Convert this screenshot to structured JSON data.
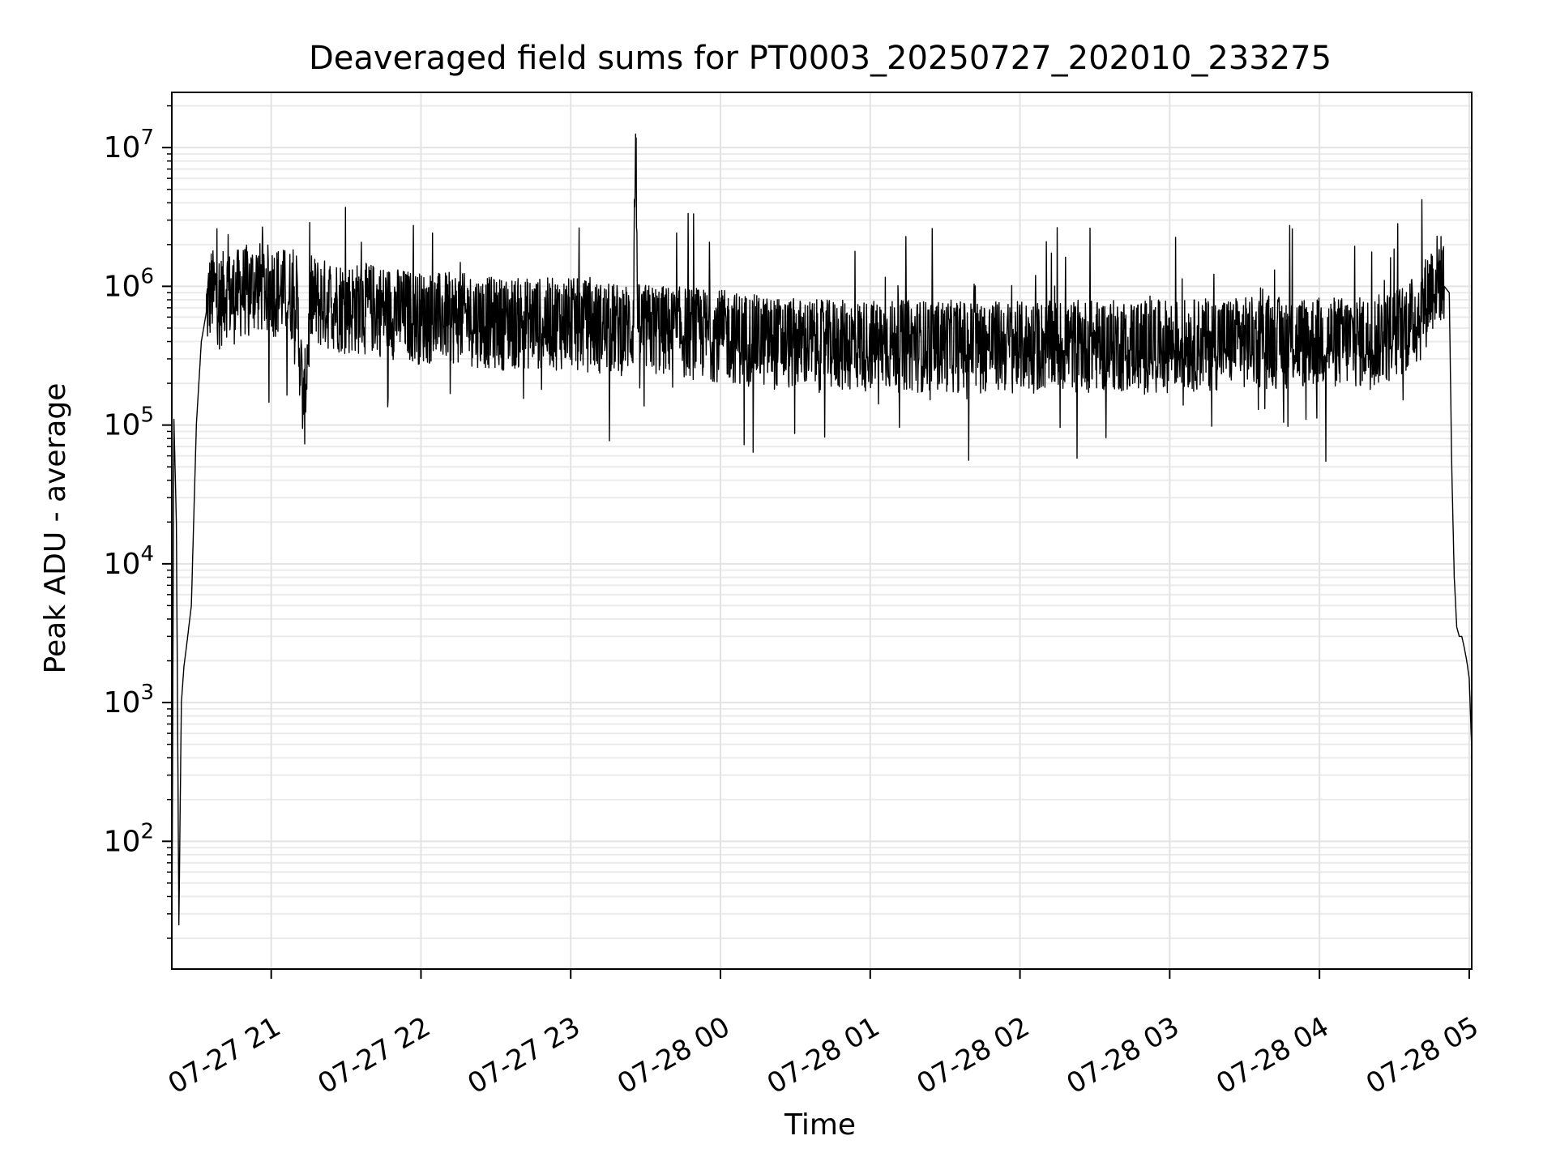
{
  "chart_data": {
    "type": "line",
    "title": "Deaveraged field sums for PT0003_20250727_202010_233275",
    "xlabel": "Time",
    "ylabel": "Peak ADU - average",
    "x_axis": {
      "kind": "time",
      "range": [
        "2025-07-27 20:20:10",
        "2025-07-28 05:01:00"
      ],
      "ticks": [
        "2025-07-27 21:00",
        "2025-07-27 22:00",
        "2025-07-27 23:00",
        "2025-07-28 00:00",
        "2025-07-28 01:00",
        "2025-07-28 02:00",
        "2025-07-28 03:00",
        "2025-07-28 04:00",
        "2025-07-28 05:00"
      ],
      "tick_labels": [
        "07-27 21",
        "07-27 22",
        "07-27 23",
        "07-28 00",
        "07-28 01",
        "07-28 02",
        "07-28 03",
        "07-28 04",
        "07-28 05"
      ],
      "tick_label_rotation_deg": 30
    },
    "y_axis": {
      "scale": "log",
      "range": [
        12,
        25000000
      ],
      "ticks": [
        100,
        1000,
        10000,
        100000,
        1000000,
        10000000
      ],
      "tick_labels": [
        {
          "base": "10",
          "exp": "2"
        },
        {
          "base": "10",
          "exp": "3"
        },
        {
          "base": "10",
          "exp": "4"
        },
        {
          "base": "10",
          "exp": "5"
        },
        {
          "base": "10",
          "exp": "6"
        },
        {
          "base": "10",
          "exp": "7"
        }
      ]
    },
    "grid": true,
    "grid_minor": true,
    "series": [
      {
        "color": "#000000",
        "x": [
          "2025-07-27 20:20:10",
          "2025-07-27 20:21:00",
          "2025-07-27 20:22:00",
          "2025-07-27 20:23:00",
          "2025-07-27 20:24:00",
          "2025-07-27 20:25:00",
          "2025-07-27 20:26:00",
          "2025-07-27 20:28:00",
          "2025-07-27 20:30:00",
          "2025-07-27 20:32:00",
          "2025-07-27 20:34:00",
          "2025-07-27 20:36:00",
          "2025-07-27 20:38:00",
          "2025-07-27 20:40:00",
          "2025-07-27 20:42:00",
          "2025-07-27 20:44:00",
          "2025-07-27 20:47:00",
          "2025-07-27 20:50:00",
          "2025-07-27 20:55:00",
          "2025-07-27 21:00:00",
          "2025-07-27 21:05:00",
          "2025-07-27 21:10:00",
          "2025-07-27 21:13:00",
          "2025-07-27 21:16:00",
          "2025-07-27 21:20:00",
          "2025-07-27 21:25:00",
          "2025-07-27 21:30:00",
          "2025-07-27 21:40:00",
          "2025-07-27 21:50:00",
          "2025-07-27 22:00:00",
          "2025-07-27 22:15:00",
          "2025-07-27 22:30:00",
          "2025-07-27 22:45:00",
          "2025-07-27 23:00:00",
          "2025-07-27 23:15:00",
          "2025-07-27 23:25:00",
          "2025-07-27 23:26:00",
          "2025-07-27 23:27:00",
          "2025-07-27 23:40:00",
          "2025-07-28 00:00:00",
          "2025-07-28 00:20:00",
          "2025-07-28 00:40:00",
          "2025-07-28 01:00:00",
          "2025-07-28 01:30:00",
          "2025-07-28 02:00:00",
          "2025-07-28 02:30:00",
          "2025-07-28 03:00:00",
          "2025-07-28 03:30:00",
          "2025-07-28 04:00:00",
          "2025-07-28 04:20:00",
          "2025-07-28 04:30:00",
          "2025-07-28 04:40:00",
          "2025-07-28 04:45:00",
          "2025-07-28 04:48:00",
          "2025-07-28 04:50:00",
          "2025-07-28 04:52:00",
          "2025-07-28 04:53:00",
          "2025-07-28 04:54:00",
          "2025-07-28 04:55:00",
          "2025-07-28 04:56:00",
          "2025-07-28 04:57:00",
          "2025-07-28 04:58:00",
          "2025-07-28 04:59:00",
          "2025-07-28 05:00:00",
          "2025-07-28 05:01:00"
        ],
        "y": [
          12,
          110000,
          20000,
          25,
          1000,
          1800,
          2500,
          5000,
          100000,
          400000,
          650000,
          900000,
          850000,
          800000,
          950000,
          800000,
          900000,
          950000,
          1000000,
          950000,
          900000,
          850000,
          120000,
          800000,
          750000,
          750000,
          700000,
          700000,
          650000,
          600000,
          600000,
          550000,
          550000,
          550000,
          500000,
          500000,
          12500000,
          500000,
          480000,
          450000,
          400000,
          380000,
          380000,
          380000,
          370000,
          380000,
          380000,
          400000,
          400000,
          400000,
          450000,
          600000,
          1000000,
          1200000,
          1000000,
          900000,
          50000,
          8000,
          3500,
          3000,
          3000,
          2500,
          2000,
          1500,
          450
        ]
      }
    ]
  }
}
